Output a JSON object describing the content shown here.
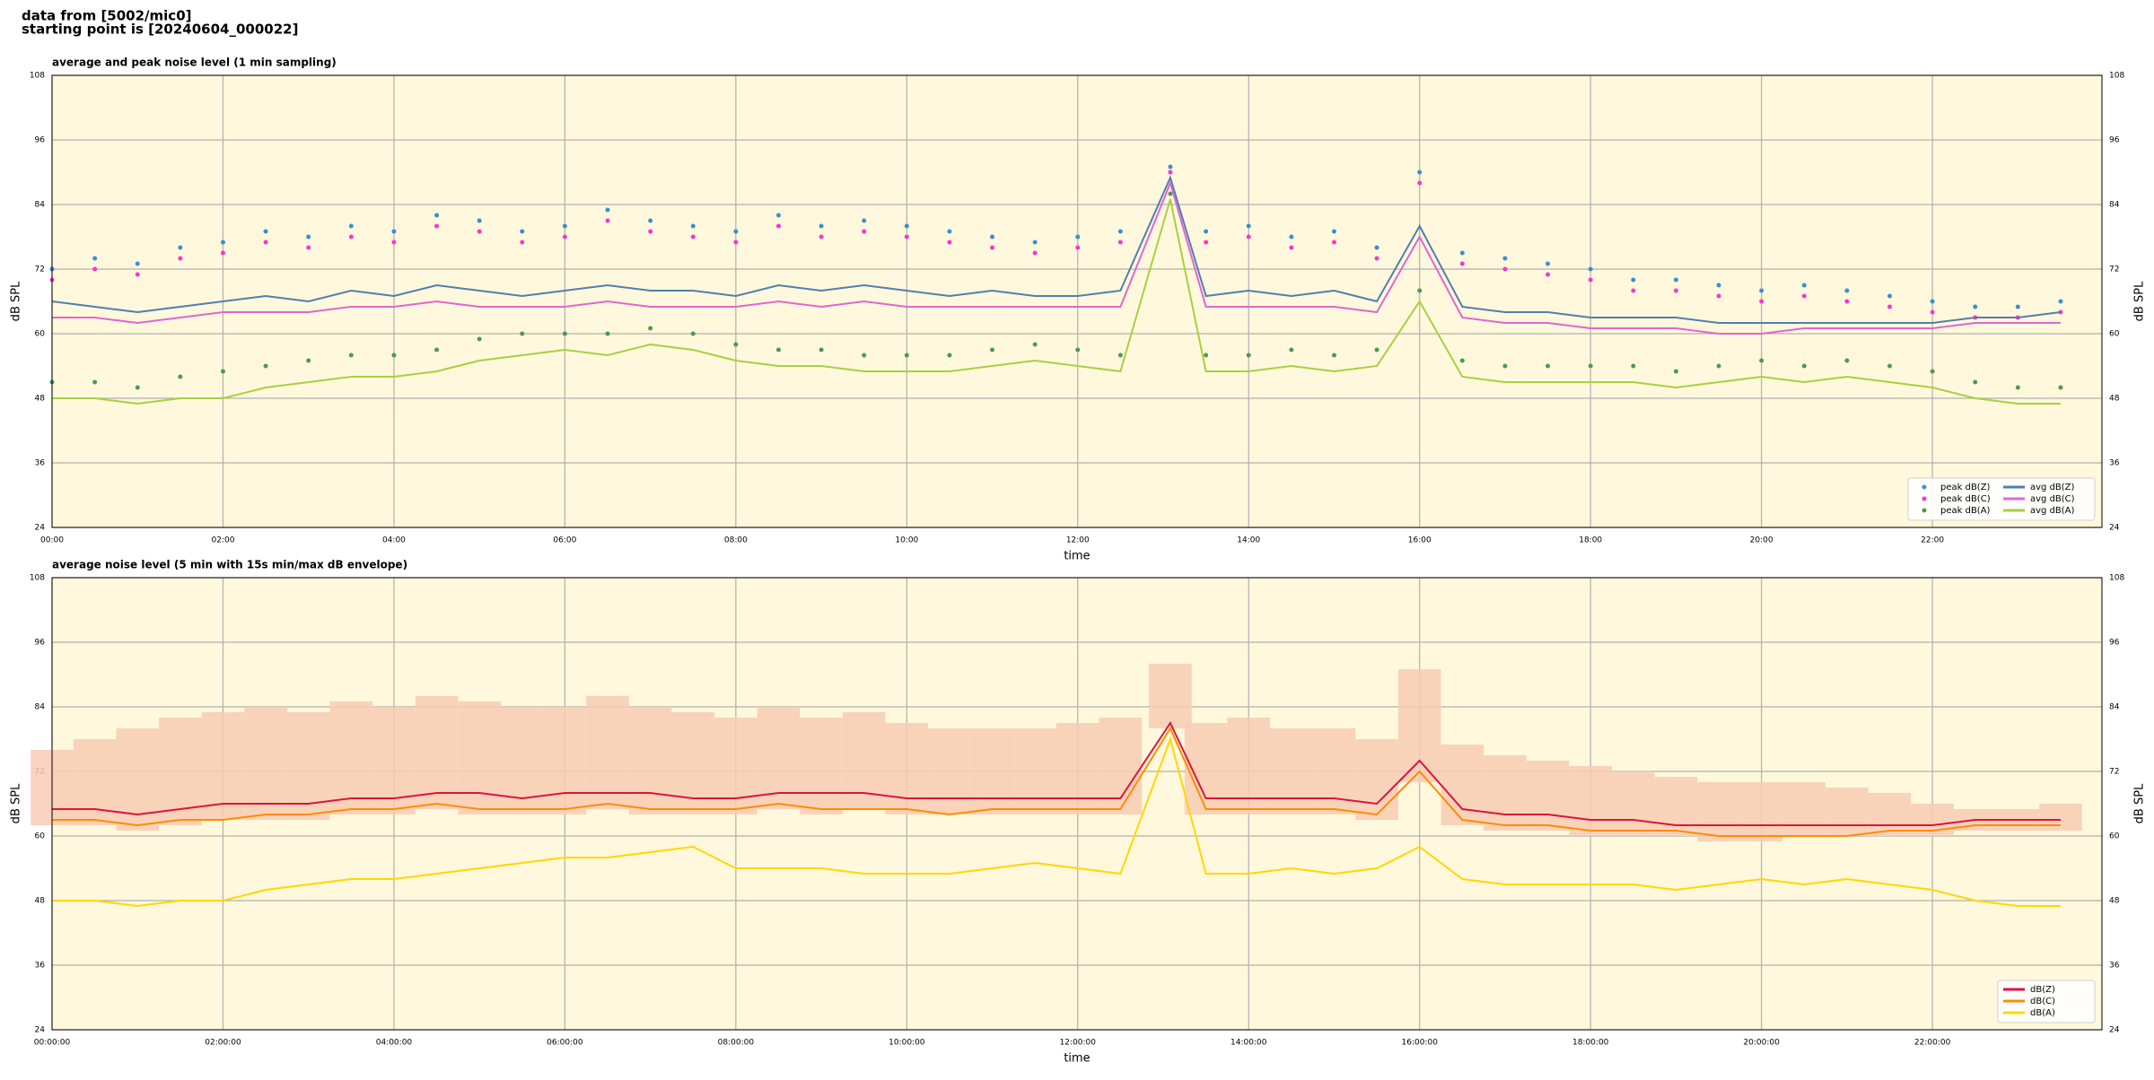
{
  "header": {
    "line1": "data from [5002/mic0]",
    "line2": "starting point is [20240604_000022]"
  },
  "chart_data": [
    {
      "type": "line",
      "title": "average and peak noise level (1 min sampling)",
      "x_label": "time",
      "y_label": "dB SPL",
      "y2_label": "dB SPL",
      "xlim": [
        "00:00",
        "23:59"
      ],
      "xticks": [
        "00:00",
        "02:00",
        "04:00",
        "06:00",
        "08:00",
        "10:00",
        "12:00",
        "14:00",
        "16:00",
        "18:00",
        "20:00",
        "22:00"
      ],
      "ylim": [
        24,
        108
      ],
      "yticks": [
        24,
        36,
        48,
        60,
        72,
        84,
        96,
        108
      ],
      "grid": true,
      "legend": "lower right",
      "legend_columns": 2,
      "background": "#fff8dc",
      "x": [
        "00:00",
        "00:30",
        "01:00",
        "01:30",
        "02:00",
        "02:30",
        "03:00",
        "03:30",
        "04:00",
        "04:30",
        "05:00",
        "05:30",
        "06:00",
        "06:30",
        "07:00",
        "07:30",
        "08:00",
        "08:30",
        "09:00",
        "09:30",
        "10:00",
        "10:30",
        "11:00",
        "11:30",
        "12:00",
        "12:30",
        "13:05",
        "13:30",
        "14:00",
        "14:30",
        "15:00",
        "15:30",
        "16:00",
        "16:30",
        "17:00",
        "17:30",
        "18:00",
        "18:30",
        "19:00",
        "19:30",
        "20:00",
        "20:30",
        "21:00",
        "21:30",
        "22:00",
        "22:30",
        "23:00",
        "23:30"
      ],
      "series": [
        {
          "name": "peak dB(Z)",
          "kind": "scatter",
          "color": "#3a8fd0",
          "values": [
            72,
            74,
            73,
            76,
            77,
            79,
            78,
            80,
            79,
            82,
            81,
            79,
            80,
            83,
            81,
            80,
            79,
            82,
            80,
            81,
            80,
            79,
            78,
            77,
            78,
            79,
            91,
            79,
            80,
            78,
            79,
            76,
            90,
            75,
            74,
            73,
            72,
            70,
            70,
            69,
            68,
            69,
            68,
            67,
            66,
            65,
            65,
            66
          ]
        },
        {
          "name": "peak dB(C)",
          "kind": "scatter",
          "color": "#ff33cc",
          "values": [
            70,
            72,
            71,
            74,
            75,
            77,
            76,
            78,
            77,
            80,
            79,
            77,
            78,
            81,
            79,
            78,
            77,
            80,
            78,
            79,
            78,
            77,
            76,
            75,
            76,
            77,
            90,
            77,
            78,
            76,
            77,
            74,
            88,
            73,
            72,
            71,
            70,
            68,
            68,
            67,
            66,
            67,
            66,
            65,
            64,
            63,
            63,
            64
          ]
        },
        {
          "name": "peak dB(A)",
          "kind": "scatter",
          "color": "#4e9a4e",
          "values": [
            51,
            51,
            50,
            52,
            53,
            54,
            55,
            56,
            56,
            57,
            59,
            60,
            60,
            60,
            61,
            60,
            58,
            57,
            57,
            56,
            56,
            56,
            57,
            58,
            57,
            56,
            86,
            56,
            56,
            57,
            56,
            57,
            68,
            55,
            54,
            54,
            54,
            54,
            53,
            54,
            55,
            54,
            55,
            54,
            53,
            51,
            50,
            50
          ]
        },
        {
          "name": "avg dB(Z)",
          "kind": "line",
          "color": "#4f7fb0",
          "values": [
            66,
            65,
            64,
            65,
            66,
            67,
            66,
            68,
            67,
            69,
            68,
            67,
            68,
            69,
            68,
            68,
            67,
            69,
            68,
            69,
            68,
            67,
            68,
            67,
            67,
            68,
            89,
            67,
            68,
            67,
            68,
            66,
            80,
            65,
            64,
            64,
            63,
            63,
            63,
            62,
            62,
            62,
            62,
            62,
            62,
            63,
            63,
            64
          ]
        },
        {
          "name": "avg dB(C)",
          "kind": "line",
          "color": "#e066d0",
          "values": [
            63,
            63,
            62,
            63,
            64,
            64,
            64,
            65,
            65,
            66,
            65,
            65,
            65,
            66,
            65,
            65,
            65,
            66,
            65,
            66,
            65,
            65,
            65,
            65,
            65,
            65,
            88,
            65,
            65,
            65,
            65,
            64,
            78,
            63,
            62,
            62,
            61,
            61,
            61,
            60,
            60,
            61,
            61,
            61,
            61,
            62,
            62,
            62
          ]
        },
        {
          "name": "avg dB(A)",
          "kind": "line",
          "color": "#a8d040",
          "values": [
            48,
            48,
            47,
            48,
            48,
            50,
            51,
            52,
            52,
            53,
            55,
            56,
            57,
            56,
            58,
            57,
            55,
            54,
            54,
            53,
            53,
            53,
            54,
            55,
            54,
            53,
            85,
            53,
            53,
            54,
            53,
            54,
            66,
            52,
            51,
            51,
            51,
            51,
            50,
            51,
            52,
            51,
            52,
            51,
            50,
            48,
            47,
            47
          ]
        }
      ]
    },
    {
      "type": "line",
      "title": "average noise level (5 min with 15s min/max dB envelope)",
      "x_label": "time",
      "y_label": "dB SPL",
      "y2_label": "dB SPL",
      "xlim": [
        "00:00",
        "23:59"
      ],
      "xticks": [
        {
          "value": "00:00",
          "label": "00:00:00"
        },
        {
          "value": "02:00",
          "label": "02:00:00"
        },
        {
          "value": "04:00",
          "label": "04:00:00"
        },
        {
          "value": "06:00",
          "label": "06:00:00"
        },
        {
          "value": "08:00",
          "label": "08:00:00"
        },
        {
          "value": "10:00",
          "label": "10:00:00"
        },
        {
          "value": "12:00",
          "label": "12:00:00"
        },
        {
          "value": "14:00",
          "label": "14:00:00"
        },
        {
          "value": "16:00",
          "label": "16:00:00"
        },
        {
          "value": "18:00",
          "label": "18:00:00"
        },
        {
          "value": "20:00",
          "label": "20:00:00"
        },
        {
          "value": "22:00",
          "label": "22:00:00"
        }
      ],
      "ylim": [
        24,
        108
      ],
      "yticks": [
        24,
        36,
        48,
        60,
        72,
        84,
        96,
        108
      ],
      "grid": true,
      "legend": "lower right",
      "legend_columns": 1,
      "background": "#fff8dc",
      "x": [
        "00:00",
        "00:30",
        "01:00",
        "01:30",
        "02:00",
        "02:30",
        "03:00",
        "03:30",
        "04:00",
        "04:30",
        "05:00",
        "05:30",
        "06:00",
        "06:30",
        "07:00",
        "07:30",
        "08:00",
        "08:30",
        "09:00",
        "09:30",
        "10:00",
        "10:30",
        "11:00",
        "11:30",
        "12:00",
        "12:30",
        "13:05",
        "13:30",
        "14:00",
        "14:30",
        "15:00",
        "15:30",
        "16:00",
        "16:30",
        "17:00",
        "17:30",
        "18:00",
        "18:30",
        "19:00",
        "19:30",
        "20:00",
        "20:30",
        "21:00",
        "21:30",
        "22:00",
        "22:30",
        "23:00",
        "23:30"
      ],
      "envelope": {
        "color": "#f8cbb4",
        "min": [
          62,
          62,
          61,
          62,
          63,
          63,
          63,
          64,
          64,
          65,
          64,
          64,
          64,
          65,
          64,
          64,
          64,
          65,
          64,
          65,
          64,
          64,
          64,
          64,
          64,
          64,
          80,
          64,
          64,
          64,
          64,
          63,
          70,
          62,
          61,
          61,
          60,
          60,
          60,
          59,
          59,
          60,
          60,
          60,
          60,
          61,
          61,
          61
        ],
        "max": [
          76,
          78,
          80,
          82,
          83,
          84,
          83,
          85,
          84,
          86,
          85,
          84,
          84,
          86,
          84,
          83,
          82,
          84,
          82,
          83,
          81,
          80,
          80,
          80,
          81,
          82,
          92,
          81,
          82,
          80,
          80,
          78,
          91,
          77,
          75,
          74,
          73,
          72,
          71,
          70,
          70,
          70,
          69,
          68,
          66,
          65,
          65,
          66
        ]
      },
      "series": [
        {
          "name": "dB(Z)",
          "kind": "line",
          "color": "#dc143c",
          "values": [
            65,
            65,
            64,
            65,
            66,
            66,
            66,
            67,
            67,
            68,
            68,
            67,
            68,
            68,
            68,
            67,
            67,
            68,
            68,
            68,
            67,
            67,
            67,
            67,
            67,
            67,
            81,
            67,
            67,
            67,
            67,
            66,
            74,
            65,
            64,
            64,
            63,
            63,
            62,
            62,
            62,
            62,
            62,
            62,
            62,
            63,
            63,
            63
          ]
        },
        {
          "name": "dB(C)",
          "kind": "line",
          "color": "#ff8c00",
          "values": [
            63,
            63,
            62,
            63,
            63,
            64,
            64,
            65,
            65,
            66,
            65,
            65,
            65,
            66,
            65,
            65,
            65,
            66,
            65,
            65,
            65,
            64,
            65,
            65,
            65,
            65,
            80,
            65,
            65,
            65,
            65,
            64,
            72,
            63,
            62,
            62,
            61,
            61,
            61,
            60,
            60,
            60,
            60,
            61,
            61,
            62,
            62,
            62
          ]
        },
        {
          "name": "dB(A)",
          "kind": "line",
          "color": "#ffd700",
          "values": [
            48,
            48,
            47,
            48,
            48,
            50,
            51,
            52,
            52,
            53,
            54,
            55,
            56,
            56,
            57,
            58,
            54,
            54,
            54,
            53,
            53,
            53,
            54,
            55,
            54,
            53,
            78,
            53,
            53,
            54,
            53,
            54,
            58,
            52,
            51,
            51,
            51,
            51,
            50,
            51,
            52,
            51,
            52,
            51,
            50,
            48,
            47,
            47
          ]
        }
      ]
    }
  ]
}
